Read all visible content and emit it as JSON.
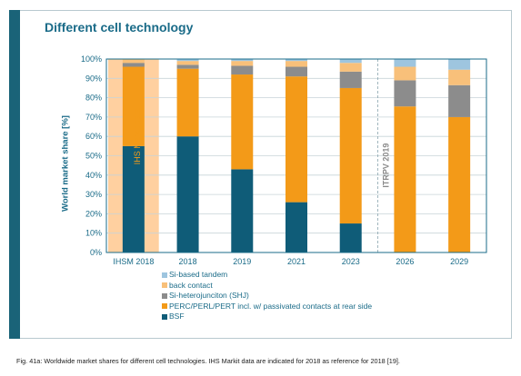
{
  "title": "Different cell technology",
  "caption": "Fig. 41a: Worldwide market shares for different cell technologies. IHS Markit data are indicated for 2018 as reference for 2018 [19].",
  "colors": {
    "accent": "#1a6378",
    "title": "#1a6b88",
    "highlight": "#ffd0a0",
    "gridline": "#c8d4d8"
  },
  "chart_data": {
    "type": "bar",
    "stacked": true,
    "title": "Different cell technology",
    "ylabel": "World market share [%]",
    "xlabel": "",
    "ylim": [
      0,
      100
    ],
    "yticks": [
      "0%",
      "10%",
      "20%",
      "30%",
      "40%",
      "50%",
      "60%",
      "70%",
      "80%",
      "90%",
      "100%"
    ],
    "categories": [
      "IHSM 2018",
      "2018",
      "2019",
      "2021",
      "2023",
      "2026",
      "2029"
    ],
    "series": [
      {
        "name": "BSF",
        "color": "#0f5c78",
        "values": [
          55,
          60,
          43,
          26,
          15,
          0,
          0
        ]
      },
      {
        "name": "PERC/PERL/PERT incl. w/ passivated contacts at rear side",
        "color": "#f39a18",
        "values": [
          41,
          35,
          49,
          65,
          70,
          75.5,
          70
        ]
      },
      {
        "name": "Si-heterojunciton (SHJ)",
        "color": "#8c8c8c",
        "values": [
          2,
          2,
          4.5,
          5,
          8.5,
          13.5,
          16.5
        ]
      },
      {
        "name": "back contact",
        "color": "#f8c07a",
        "values": [
          2,
          2,
          2.5,
          3,
          4.5,
          7,
          8
        ]
      },
      {
        "name": "Si-based tandem",
        "color": "#9ec5df",
        "values": [
          0,
          1,
          1,
          1,
          2,
          4,
          5.5
        ]
      }
    ],
    "legend_order": [
      "Si-based tandem",
      "back contact",
      "Si-heterojunciton (SHJ)",
      "PERC/PERL/PERT incl. w/ passivated contacts at rear side",
      "BSF"
    ],
    "annotations": [
      {
        "text": "IHS Markit data",
        "category": "IHSM 2018"
      },
      {
        "text": "ITRPV 2019",
        "category": "2026"
      }
    ],
    "legend_position": "bottom",
    "grid": true
  }
}
